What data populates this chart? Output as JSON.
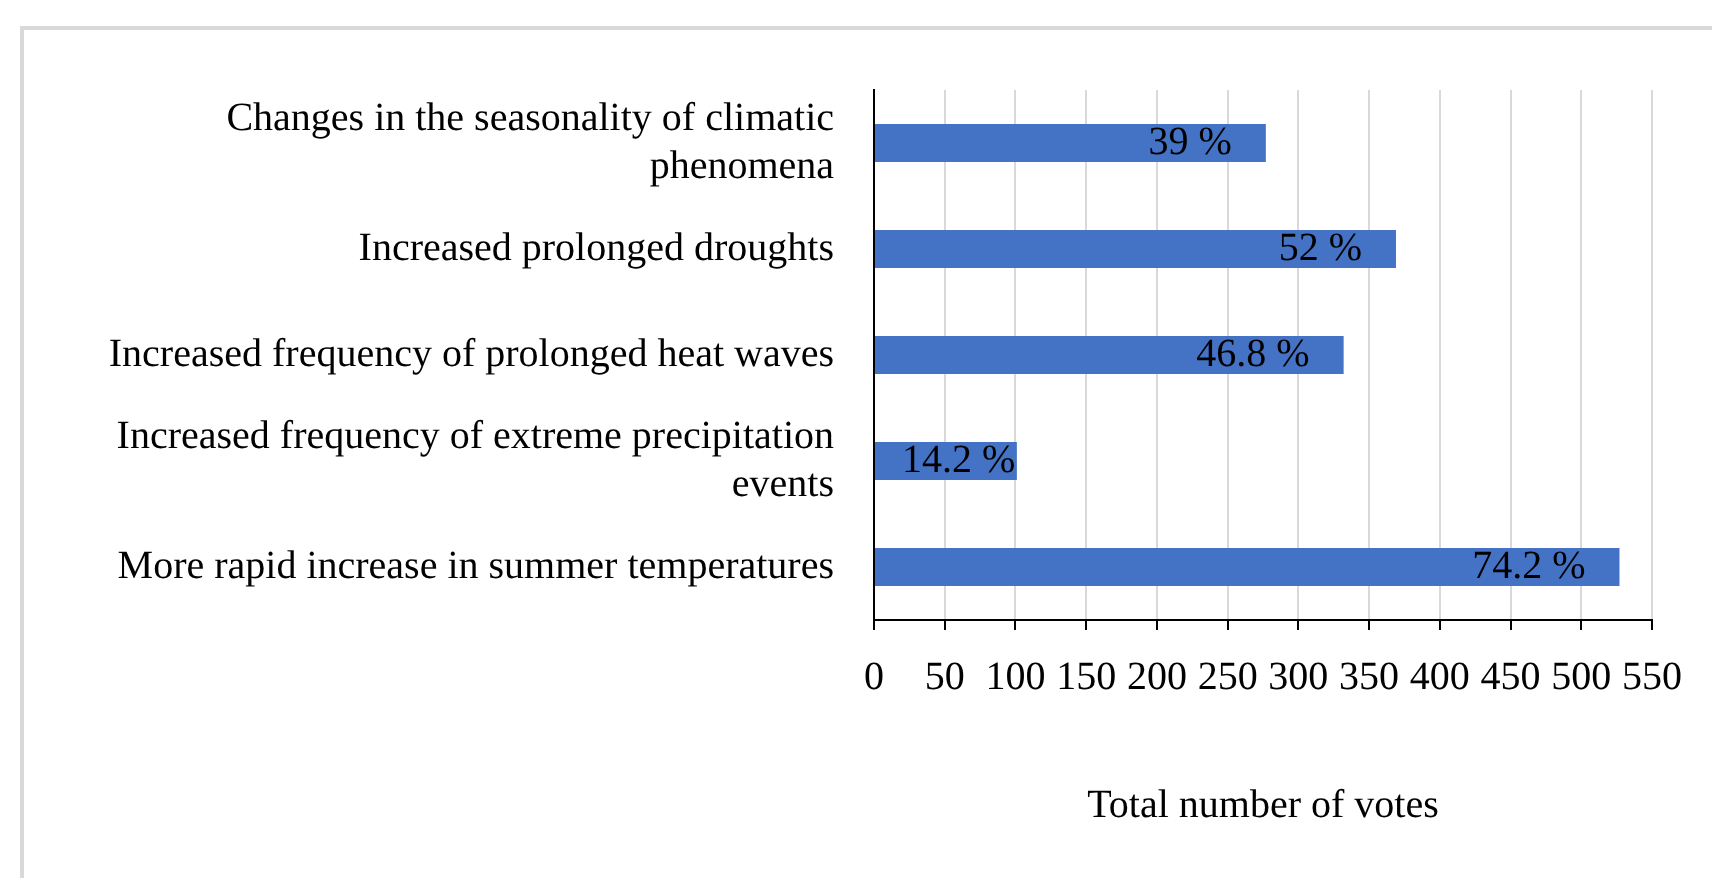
{
  "chart_data": {
    "type": "bar",
    "orientation": "horizontal",
    "categories": [
      "Changes in the seasonality of climatic phenomena",
      "Increased prolonged droughts",
      "Increased frequency of prolonged heat waves",
      "Increased frequency of extreme precipitation events",
      "More rapid increase in summer temperatures"
    ],
    "values": [
      277,
      369,
      332,
      101,
      527
    ],
    "color": "#4472c4",
    "annotations": [
      {
        "text": "39 %",
        "x": 277,
        "y": "Changes in the seasonality of climatic phenomena"
      },
      {
        "text": "52 %",
        "x": 369,
        "y": "Increased prolonged droughts"
      },
      {
        "text": "46.8 %",
        "x": 332,
        "y": "Increased frequency of prolonged heat waves"
      },
      {
        "text": "14.2 %",
        "x": 101,
        "y": "Increased frequency of extreme precipitation events"
      },
      {
        "text": "74.2 %",
        "x": 527,
        "y": "More rapid increase in summer temperatures"
      }
    ],
    "xlabel": "Total number of votes",
    "xlim": [
      0,
      550
    ],
    "xticks": [
      0,
      50,
      100,
      150,
      200,
      250,
      300,
      350,
      400,
      450,
      500,
      550
    ],
    "grid": "x"
  }
}
